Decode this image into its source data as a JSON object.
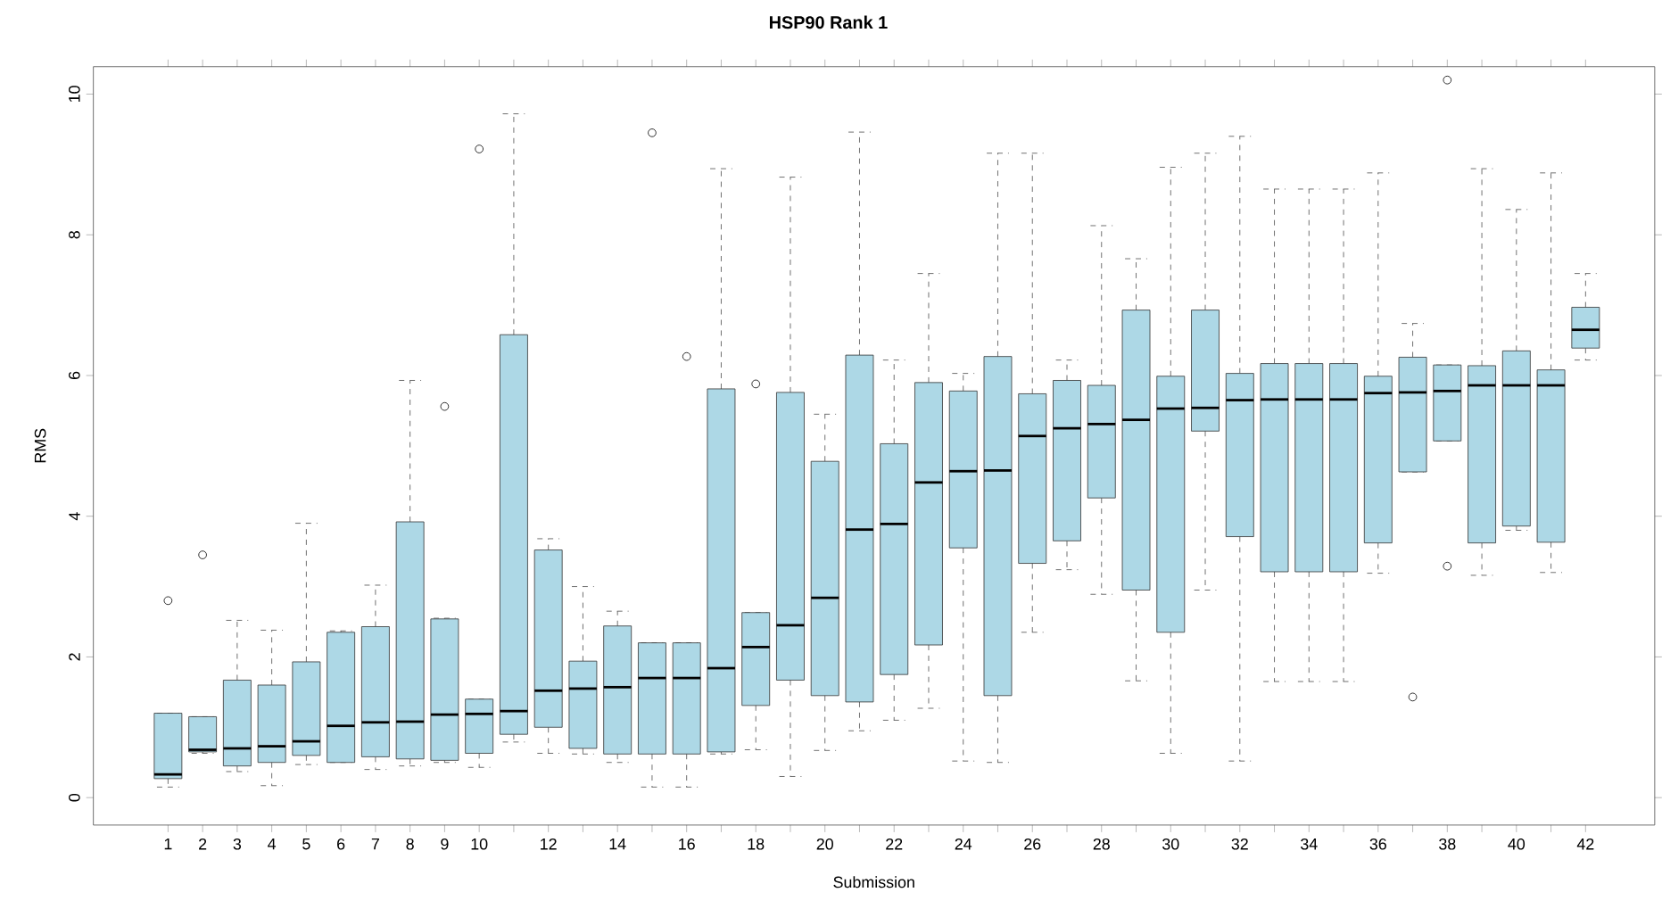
{
  "chart_data": {
    "type": "box",
    "title": "HSP90 Rank 1",
    "xlabel": "Submission",
    "ylabel": "RMS",
    "color": "#add8e6",
    "marker": "circle",
    "categories": [
      "1",
      "2",
      "3",
      "4",
      "5",
      "6",
      "7",
      "8",
      "9",
      "10",
      null,
      "12",
      null,
      "14",
      null,
      "16",
      null,
      "18",
      null,
      "20",
      null,
      "22",
      null,
      "24",
      null,
      "26",
      null,
      "28",
      null,
      "30",
      null,
      "32",
      null,
      "34",
      null,
      "36",
      null,
      "38",
      null,
      "40",
      null,
      "42"
    ],
    "ylim": [
      -0.39,
      10.39
    ],
    "yticks": [
      0,
      2,
      4,
      6,
      8,
      10
    ],
    "boxes": [
      {
        "low": 0.15,
        "q1": 0.27,
        "median": 0.33,
        "q3": 1.2,
        "high": 1.2,
        "outliers": [
          2.8
        ]
      },
      {
        "low": 0.63,
        "q1": 0.65,
        "median": 0.68,
        "q3": 1.15,
        "high": 1.15,
        "outliers": [
          3.45
        ]
      },
      {
        "low": 0.37,
        "q1": 0.45,
        "median": 0.7,
        "q3": 1.67,
        "high": 2.52
      },
      {
        "low": 0.17,
        "q1": 0.5,
        "median": 0.73,
        "q3": 1.6,
        "high": 2.38
      },
      {
        "low": 0.47,
        "q1": 0.6,
        "median": 0.8,
        "q3": 1.93,
        "high": 3.9
      },
      {
        "low": 0.5,
        "q1": 0.5,
        "median": 1.02,
        "q3": 2.35,
        "high": 2.37
      },
      {
        "low": 0.4,
        "q1": 0.58,
        "median": 1.07,
        "q3": 2.43,
        "high": 3.02
      },
      {
        "low": 0.45,
        "q1": 0.55,
        "median": 1.08,
        "q3": 3.92,
        "high": 5.93
      },
      {
        "low": 0.5,
        "q1": 0.53,
        "median": 1.18,
        "q3": 2.54,
        "high": 2.55,
        "outliers": [
          5.56
        ]
      },
      {
        "low": 0.43,
        "q1": 0.63,
        "median": 1.19,
        "q3": 1.4,
        "high": 1.4,
        "outliers": [
          9.22
        ]
      },
      {
        "low": 0.79,
        "q1": 0.9,
        "median": 1.23,
        "q3": 6.58,
        "high": 9.72
      },
      {
        "low": 0.63,
        "q1": 1.0,
        "median": 1.52,
        "q3": 3.52,
        "high": 3.68
      },
      {
        "low": 0.62,
        "q1": 0.7,
        "median": 1.55,
        "q3": 1.94,
        "high": 3.0
      },
      {
        "low": 0.5,
        "q1": 0.62,
        "median": 1.57,
        "q3": 2.44,
        "high": 2.65
      },
      {
        "low": 0.15,
        "q1": 0.62,
        "median": 1.7,
        "q3": 2.2,
        "high": 2.2,
        "outliers": [
          9.45
        ]
      },
      {
        "low": 0.15,
        "q1": 0.62,
        "median": 1.7,
        "q3": 2.2,
        "high": 2.2,
        "outliers": [
          6.27
        ]
      },
      {
        "low": 0.62,
        "q1": 0.65,
        "median": 1.84,
        "q3": 5.81,
        "high": 8.94
      },
      {
        "low": 0.68,
        "q1": 1.31,
        "median": 2.14,
        "q3": 2.63,
        "high": 2.63,
        "outliers": [
          5.88
        ]
      },
      {
        "low": 0.3,
        "q1": 1.67,
        "median": 2.45,
        "q3": 5.76,
        "high": 8.82
      },
      {
        "low": 0.67,
        "q1": 1.45,
        "median": 2.84,
        "q3": 4.78,
        "high": 5.45
      },
      {
        "low": 0.95,
        "q1": 1.36,
        "median": 3.81,
        "q3": 6.29,
        "high": 9.46
      },
      {
        "low": 1.1,
        "q1": 1.75,
        "median": 3.89,
        "q3": 5.03,
        "high": 6.22
      },
      {
        "low": 1.27,
        "q1": 2.17,
        "median": 4.48,
        "q3": 5.9,
        "high": 7.45
      },
      {
        "low": 0.52,
        "q1": 3.55,
        "median": 4.64,
        "q3": 5.78,
        "high": 6.03
      },
      {
        "low": 0.5,
        "q1": 1.45,
        "median": 4.65,
        "q3": 6.27,
        "high": 9.16
      },
      {
        "low": 2.35,
        "q1": 3.33,
        "median": 5.14,
        "q3": 5.74,
        "high": 9.16
      },
      {
        "low": 3.24,
        "q1": 3.65,
        "median": 5.25,
        "q3": 5.93,
        "high": 6.22
      },
      {
        "low": 2.89,
        "q1": 4.26,
        "median": 5.31,
        "q3": 5.86,
        "high": 8.13
      },
      {
        "low": 1.66,
        "q1": 2.95,
        "median": 5.37,
        "q3": 6.93,
        "high": 7.66
      },
      {
        "low": 0.63,
        "q1": 2.35,
        "median": 5.53,
        "q3": 5.99,
        "high": 8.96
      },
      {
        "low": 2.95,
        "q1": 5.21,
        "median": 5.54,
        "q3": 6.93,
        "high": 9.16
      },
      {
        "low": 0.52,
        "q1": 3.71,
        "median": 5.65,
        "q3": 6.03,
        "high": 9.4
      },
      {
        "low": 1.65,
        "q1": 3.21,
        "median": 5.66,
        "q3": 6.17,
        "high": 8.65
      },
      {
        "low": 1.65,
        "q1": 3.21,
        "median": 5.66,
        "q3": 6.17,
        "high": 8.65
      },
      {
        "low": 1.65,
        "q1": 3.21,
        "median": 5.66,
        "q3": 6.17,
        "high": 8.65
      },
      {
        "low": 3.19,
        "q1": 3.62,
        "median": 5.75,
        "q3": 5.99,
        "high": 8.88
      },
      {
        "low": 4.63,
        "q1": 4.63,
        "median": 5.76,
        "q3": 6.26,
        "high": 6.74,
        "outliers": [
          1.43
        ]
      },
      {
        "low": 5.07,
        "q1": 5.07,
        "median": 5.78,
        "q3": 6.15,
        "high": 6.15,
        "outliers": [
          10.2,
          3.29
        ]
      },
      {
        "low": 3.16,
        "q1": 3.62,
        "median": 5.86,
        "q3": 6.14,
        "high": 8.94
      },
      {
        "low": 3.8,
        "q1": 3.86,
        "median": 5.86,
        "q3": 6.35,
        "high": 8.36
      },
      {
        "low": 3.2,
        "q1": 3.63,
        "median": 5.86,
        "q3": 6.08,
        "high": 8.88
      },
      {
        "low": 6.22,
        "q1": 6.39,
        "median": 6.65,
        "q3": 6.97,
        "high": 7.45
      }
    ]
  }
}
